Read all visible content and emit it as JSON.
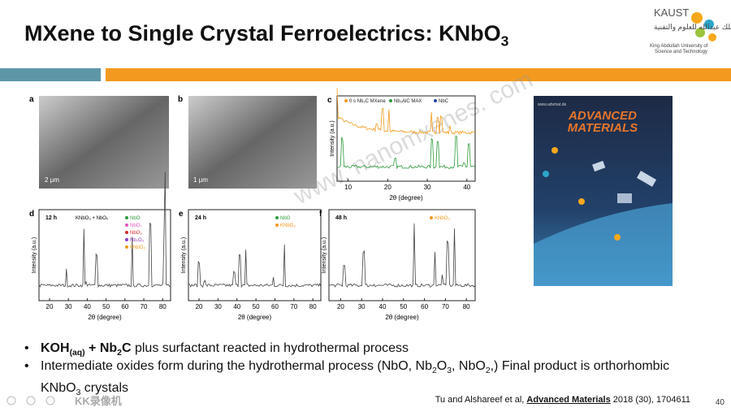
{
  "header": {
    "title": [
      "MXene to Single Crystal Ferroelectrics: KNbO",
      "3"
    ],
    "logo": "KAUST",
    "logo_arabic": "جامعة الملك عبدالله للعلوم والتقنية",
    "logo_english": [
      "King Abdullah University of",
      "Science and Technology"
    ]
  },
  "images": [
    {
      "label": "a",
      "scale": "2 μm"
    },
    {
      "label": "b",
      "scale": "1 μm"
    }
  ],
  "plots": [
    {
      "label": "c",
      "ylabel": "Intensity (a.u.)",
      "xlabel": "2θ (degree)",
      "ticks": [
        "10",
        "20",
        "30",
        "40"
      ],
      "legend": [
        "0 s Nb₂C MXene",
        "Nb₂AlC MAX",
        "NbC"
      ]
    },
    {
      "label": "d",
      "ylabel": "Intensity (a.u.)",
      "xlabel": "2θ (degree)",
      "ticks": [
        "20",
        "30",
        "40",
        "50",
        "60",
        "70",
        "80"
      ],
      "time": "12 h",
      "note": "KNbO₃ + NbOₓ",
      "legend": [
        "NbO",
        "NbO₂",
        "NbO₃",
        "Nb₂O₃",
        "KNbO₃"
      ]
    },
    {
      "label": "e",
      "ylabel": "Intensity (a.u.)",
      "xlabel": "2θ (degree)",
      "ticks": [
        "20",
        "30",
        "40",
        "50",
        "60",
        "70",
        "80"
      ],
      "time": "24 h",
      "legend": [
        "NbO",
        "KNbO₃"
      ]
    },
    {
      "label": "f",
      "ylabel": "Intensity (a.u.)",
      "xlabel": "2θ (degree)",
      "ticks": [
        "20",
        "30",
        "40",
        "50",
        "60",
        "70",
        "80"
      ],
      "time": "48 h",
      "legend": [
        "KNbO₃"
      ]
    }
  ],
  "cover": {
    "url": "www.advmat.de",
    "title": [
      "ADVANCED",
      "MATERIALS"
    ]
  },
  "watermark": "www. nanomxenes. com",
  "bullets": [
    [
      "KOH",
      "(aq)",
      " + Nb",
      "2",
      "C",
      "  plus surfactant reacted in hydrothermal process"
    ],
    [
      "Intermediate oxides form during the hydrothermal process (NbO, Nb",
      "2",
      "O",
      "3",
      ", NbO",
      "2",
      ",) Final product is orthorhombic KNbO",
      "3",
      " crystals"
    ]
  ],
  "citation": [
    "Tu and Alshareef et al, ",
    "Advanced Materials",
    " 2018 (30), 1704611"
  ],
  "page_number": "40",
  "recorder": "KK录像机"
}
